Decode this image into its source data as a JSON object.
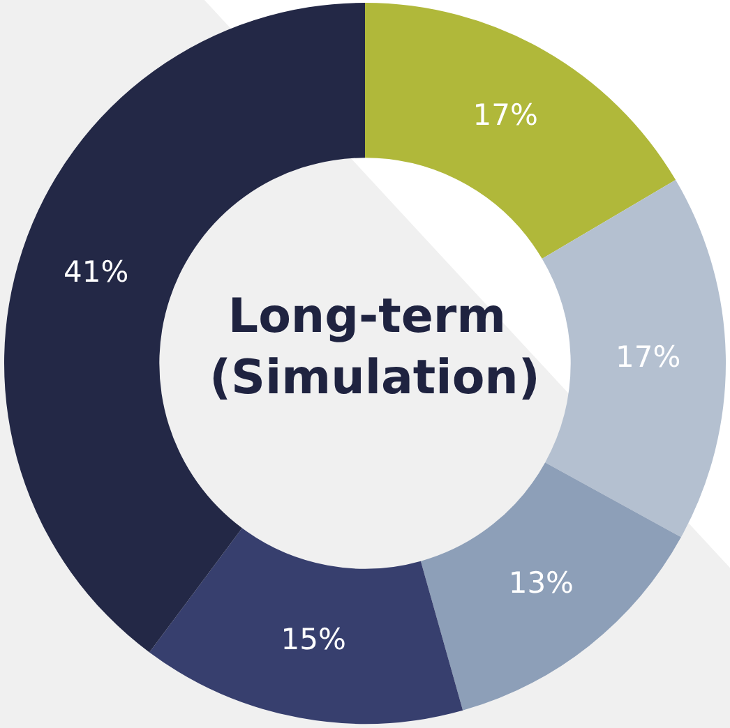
{
  "chart_data": {
    "type": "donut",
    "title": "Long-term (Simulation)",
    "categories": [
      null,
      null,
      null,
      null,
      null
    ],
    "values": [
      17,
      17,
      13,
      15,
      41
    ],
    "colors": [
      "#b0b83a",
      "#b4c0d0",
      "#8d9fb8",
      "#373f6e",
      "#232846"
    ],
    "value_labels": [
      "17%",
      "17%",
      "13%",
      "15%",
      "41%"
    ],
    "legend": false
  }
}
